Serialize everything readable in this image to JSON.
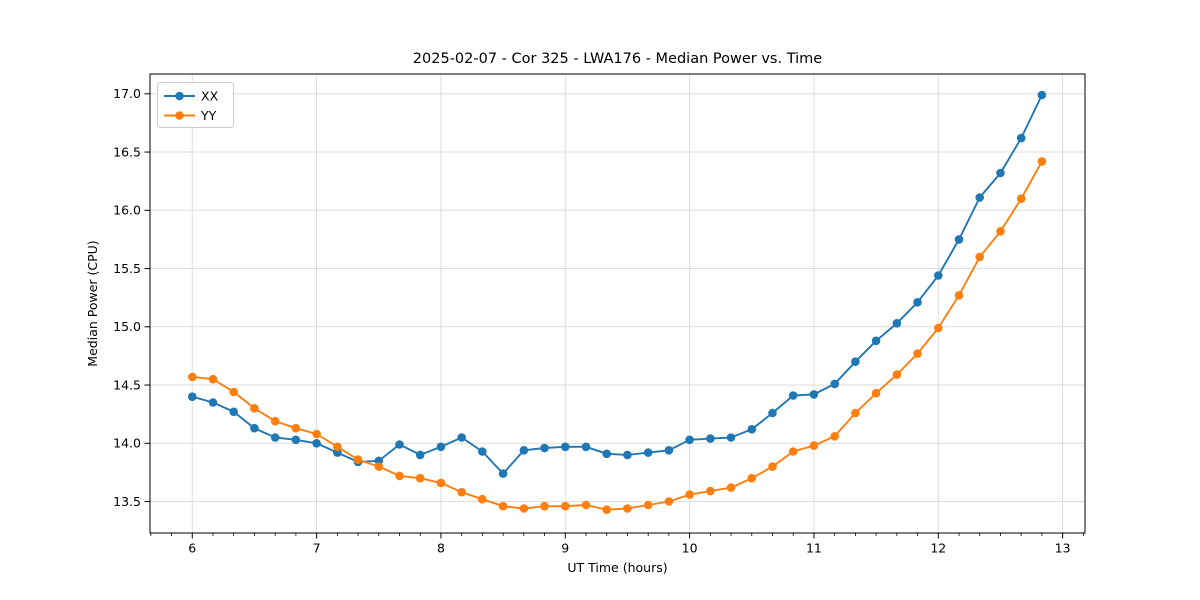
{
  "chart_data": {
    "type": "line",
    "title": "2025-02-07 - Cor 325 - LWA176 - Median Power vs. Time",
    "xlabel": "UT Time (hours)",
    "ylabel": "Median Power (CPU)",
    "x": [
      6.0,
      6.167,
      6.333,
      6.5,
      6.667,
      6.833,
      7.0,
      7.167,
      7.333,
      7.5,
      7.667,
      7.833,
      8.0,
      8.167,
      8.333,
      8.5,
      8.667,
      8.833,
      9.0,
      9.167,
      9.333,
      9.5,
      9.667,
      9.833,
      10.0,
      10.167,
      10.333,
      10.5,
      10.667,
      10.833,
      11.0,
      11.167,
      11.333,
      11.5,
      11.667,
      11.833,
      12.0,
      12.167,
      12.333,
      12.5,
      12.667,
      12.833
    ],
    "series": [
      {
        "name": "XX",
        "color": "#1f77b4",
        "values": [
          14.4,
          14.35,
          14.27,
          14.13,
          14.05,
          14.03,
          14.0,
          13.92,
          13.84,
          13.85,
          13.99,
          13.9,
          13.97,
          14.05,
          13.93,
          13.74,
          13.94,
          13.96,
          13.97,
          13.97,
          13.91,
          13.9,
          13.92,
          13.94,
          14.03,
          14.04,
          14.05,
          14.12,
          14.26,
          14.41,
          14.42,
          14.51,
          14.7,
          14.88,
          15.03,
          15.21,
          15.44,
          15.75,
          16.11,
          16.32,
          16.62,
          16.99
        ]
      },
      {
        "name": "YY",
        "color": "#ff7f0e",
        "values": [
          14.57,
          14.55,
          14.44,
          14.3,
          14.19,
          14.13,
          14.08,
          13.97,
          13.86,
          13.8,
          13.72,
          13.7,
          13.66,
          13.58,
          13.52,
          13.46,
          13.44,
          13.46,
          13.46,
          13.47,
          13.43,
          13.44,
          13.47,
          13.5,
          13.56,
          13.59,
          13.62,
          13.7,
          13.8,
          13.93,
          13.98,
          14.06,
          14.26,
          14.43,
          14.59,
          14.77,
          14.99,
          15.27,
          15.6,
          15.82,
          16.1,
          16.42
        ]
      }
    ],
    "xlim": [
      5.66,
      13.18
    ],
    "ylim": [
      13.23,
      17.17
    ],
    "xticks": [
      6,
      7,
      8,
      9,
      10,
      11,
      12,
      13
    ],
    "yticks": [
      13.5,
      14.0,
      14.5,
      15.0,
      15.5,
      16.0,
      16.5,
      17.0
    ],
    "x_minor_tick_step": 0.16667,
    "grid": true,
    "grid_color": "#dddddd",
    "spine_color": "#000000",
    "legend_position": "upper-left",
    "marker": "circle"
  }
}
